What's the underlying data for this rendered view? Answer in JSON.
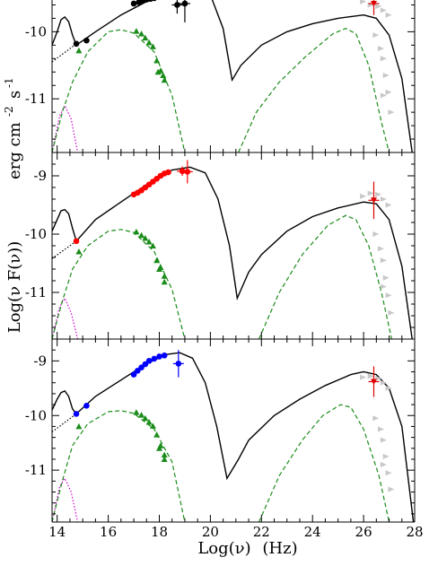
{
  "chart_data": {
    "type": "scatter",
    "xlabel": "Log(ν)",
    "xunit": "(Hz)",
    "ylabel": "Log(ν F(ν))",
    "yunit": {
      "base": "erg cm",
      "exp1": "-2",
      "mid": "s",
      "exp2": "-1"
    },
    "xlim": [
      13.8,
      28
    ],
    "xticks": [
      14,
      16,
      18,
      20,
      22,
      24,
      26,
      28
    ],
    "colors": {
      "model": "#000000",
      "host": "#cc00cc",
      "ext_component": "#1a8c1a",
      "green_points": "#1a8c1a",
      "gray_points": "#c8c8c8",
      "fermi_point": "#e00000"
    },
    "panels": [
      {
        "ylim": [
          -11.8,
          -9.5
        ],
        "yticks": [
          -11,
          -10
        ],
        "point_color": "#000000",
        "points": [
          [
            14.75,
            -10.18
          ],
          [
            15.15,
            -10.13
          ],
          [
            17.0,
            -9.58
          ],
          [
            17.2,
            -9.56
          ],
          [
            17.35,
            -9.53
          ],
          [
            17.5,
            -9.52
          ],
          [
            17.65,
            -9.51
          ],
          [
            17.8,
            -9.5
          ],
          [
            18.7,
            -9.6
          ],
          [
            19.0,
            -9.58
          ]
        ],
        "errors": [
          [
            18.7,
            -9.6,
            0.13
          ],
          [
            19.0,
            -9.58,
            0.28
          ]
        ],
        "model": [
          [
            13.8,
            -10.2
          ],
          [
            14.0,
            -10.0
          ],
          [
            14.15,
            -9.82
          ],
          [
            14.3,
            -9.78
          ],
          [
            14.45,
            -9.85
          ],
          [
            14.6,
            -10.05
          ],
          [
            14.75,
            -10.2
          ],
          [
            15.5,
            -10.0
          ],
          [
            16.5,
            -9.75
          ],
          [
            17.5,
            -9.55
          ],
          [
            18.5,
            -9.45
          ],
          [
            19.5,
            -9.4
          ],
          [
            20.0,
            -9.45
          ],
          [
            20.5,
            -9.95
          ],
          [
            20.85,
            -10.72
          ],
          [
            21.2,
            -10.5
          ],
          [
            22.0,
            -10.2
          ],
          [
            23.0,
            -10.0
          ],
          [
            24.0,
            -9.88
          ],
          [
            25.0,
            -9.8
          ],
          [
            26.0,
            -9.75
          ],
          [
            26.5,
            -9.8
          ],
          [
            27.0,
            -10.05
          ],
          [
            27.5,
            -10.7
          ],
          [
            27.9,
            -11.8
          ]
        ],
        "ext": [
          [
            13.8,
            -11.8
          ],
          [
            14.2,
            -11.2
          ],
          [
            14.6,
            -10.75
          ],
          [
            15.2,
            -10.3
          ],
          [
            16.0,
            -10.0
          ],
          [
            16.5,
            -9.97
          ],
          [
            17.0,
            -10.02
          ],
          [
            17.8,
            -10.3
          ],
          [
            18.5,
            -10.95
          ],
          [
            19.0,
            -11.8
          ]
        ],
        "ext2": [
          [
            21.1,
            -11.8
          ],
          [
            21.8,
            -11.2
          ],
          [
            22.7,
            -10.75
          ],
          [
            23.7,
            -10.38
          ],
          [
            24.8,
            -10.03
          ],
          [
            25.3,
            -9.95
          ],
          [
            25.7,
            -10.03
          ],
          [
            26.2,
            -10.5
          ],
          [
            26.7,
            -11.35
          ],
          [
            27.0,
            -11.8
          ]
        ],
        "host": [
          [
            13.8,
            -11.8
          ],
          [
            14.1,
            -11.25
          ],
          [
            14.3,
            -11.1
          ],
          [
            14.55,
            -11.3
          ],
          [
            14.8,
            -11.8
          ]
        ],
        "host_line": [
          [
            13.8,
            -10.45
          ],
          [
            14.75,
            -10.18
          ]
        ],
        "green": [
          [
            14.85,
            -10.28
          ],
          [
            17.1,
            -9.99
          ],
          [
            17.3,
            -10.03
          ],
          [
            17.45,
            -10.09
          ],
          [
            17.6,
            -10.16
          ],
          [
            17.75,
            -10.22
          ],
          [
            17.9,
            -10.43
          ],
          [
            18.05,
            -10.58
          ],
          [
            18.2,
            -10.72
          ],
          [
            17.95,
            -10.6
          ],
          [
            18.15,
            -10.65
          ]
        ],
        "gray": [
          [
            26.0,
            -9.55
          ],
          [
            26.3,
            -9.6
          ],
          [
            26.6,
            -9.62
          ],
          [
            26.8,
            -9.68
          ],
          [
            27.0,
            -9.75
          ],
          [
            26.5,
            -10.05
          ],
          [
            26.7,
            -10.25
          ],
          [
            26.8,
            -10.4
          ],
          [
            26.9,
            -10.65
          ],
          [
            27.0,
            -10.9
          ],
          [
            27.1,
            -11.2
          ],
          [
            26.8,
            -10.95
          ]
        ],
        "fermi": {
          "x": 26.4,
          "y": -9.58,
          "err": 0.17
        }
      },
      {
        "ylim": [
          -11.8,
          -8.6
        ],
        "yticks": [
          -11,
          -10,
          -9
        ],
        "point_color": "#ff0000",
        "points": [
          [
            14.75,
            -10.12
          ],
          [
            17.0,
            -9.32
          ],
          [
            17.15,
            -9.29
          ],
          [
            17.3,
            -9.25
          ],
          [
            17.45,
            -9.2
          ],
          [
            17.6,
            -9.15
          ],
          [
            17.75,
            -9.1
          ],
          [
            17.9,
            -9.05
          ],
          [
            18.05,
            -9.0
          ],
          [
            18.2,
            -8.96
          ],
          [
            18.35,
            -8.94
          ],
          [
            18.9,
            -8.92
          ],
          [
            19.1,
            -8.93
          ]
        ],
        "errors": [
          [
            18.9,
            -8.92,
            0.08
          ],
          [
            19.1,
            -8.93,
            0.2
          ]
        ],
        "model": [
          [
            13.8,
            -9.95
          ],
          [
            14.0,
            -9.75
          ],
          [
            14.15,
            -9.6
          ],
          [
            14.3,
            -9.58
          ],
          [
            14.45,
            -9.65
          ],
          [
            14.6,
            -9.9
          ],
          [
            14.75,
            -10.12
          ],
          [
            15.5,
            -9.75
          ],
          [
            16.5,
            -9.45
          ],
          [
            17.5,
            -9.15
          ],
          [
            18.5,
            -8.9
          ],
          [
            19.2,
            -8.85
          ],
          [
            19.8,
            -8.95
          ],
          [
            20.3,
            -9.4
          ],
          [
            20.75,
            -10.2
          ],
          [
            21.05,
            -11.1
          ],
          [
            21.5,
            -10.65
          ],
          [
            22.0,
            -10.35
          ],
          [
            23.0,
            -9.95
          ],
          [
            24.0,
            -9.7
          ],
          [
            25.0,
            -9.55
          ],
          [
            26.0,
            -9.45
          ],
          [
            26.5,
            -9.48
          ],
          [
            27.0,
            -9.75
          ],
          [
            27.5,
            -10.55
          ],
          [
            27.9,
            -11.8
          ]
        ],
        "ext": [
          [
            13.8,
            -11.8
          ],
          [
            14.2,
            -11.15
          ],
          [
            14.6,
            -10.6
          ],
          [
            15.2,
            -10.2
          ],
          [
            16.0,
            -9.95
          ],
          [
            16.5,
            -9.92
          ],
          [
            17.0,
            -9.97
          ],
          [
            17.8,
            -10.3
          ],
          [
            18.5,
            -10.95
          ],
          [
            19.0,
            -11.8
          ]
        ],
        "ext2": [
          [
            21.9,
            -11.8
          ],
          [
            22.7,
            -11.0
          ],
          [
            23.6,
            -10.35
          ],
          [
            24.6,
            -9.85
          ],
          [
            25.3,
            -9.68
          ],
          [
            25.7,
            -9.75
          ],
          [
            26.2,
            -10.2
          ],
          [
            26.7,
            -11.0
          ],
          [
            27.1,
            -11.8
          ]
        ],
        "host": [
          [
            13.8,
            -11.8
          ],
          [
            14.1,
            -11.25
          ],
          [
            14.3,
            -11.1
          ],
          [
            14.55,
            -11.35
          ],
          [
            14.8,
            -11.8
          ]
        ],
        "host_line": [
          [
            13.8,
            -10.42
          ],
          [
            14.75,
            -10.12
          ]
        ],
        "green": [
          [
            14.85,
            -10.3
          ],
          [
            17.1,
            -9.96
          ],
          [
            17.3,
            -10.02
          ],
          [
            17.45,
            -10.07
          ],
          [
            17.6,
            -10.13
          ],
          [
            17.75,
            -10.2
          ],
          [
            17.9,
            -10.45
          ],
          [
            18.05,
            -10.57
          ],
          [
            18.2,
            -10.72
          ],
          [
            18.0,
            -10.6
          ],
          [
            18.2,
            -10.82
          ]
        ],
        "gray": [
          [
            26.0,
            -9.35
          ],
          [
            26.3,
            -9.3
          ],
          [
            26.6,
            -9.32
          ],
          [
            26.8,
            -9.4
          ],
          [
            27.0,
            -9.5
          ],
          [
            26.5,
            -10.0
          ],
          [
            26.7,
            -10.25
          ],
          [
            26.8,
            -10.45
          ],
          [
            26.9,
            -10.75
          ],
          [
            27.0,
            -11.05
          ],
          [
            27.1,
            -11.35
          ],
          [
            26.8,
            -10.9
          ]
        ],
        "fermi": {
          "x": 26.4,
          "y": -9.42,
          "err": 0.32
        }
      },
      {
        "ylim": [
          -11.95,
          -8.6
        ],
        "yticks": [
          -11,
          -10,
          -9
        ],
        "point_color": "#0000ff",
        "points": [
          [
            14.75,
            -9.97
          ],
          [
            15.15,
            -9.82
          ],
          [
            17.0,
            -9.25
          ],
          [
            17.15,
            -9.18
          ],
          [
            17.3,
            -9.12
          ],
          [
            17.45,
            -9.06
          ],
          [
            17.6,
            -9.0
          ],
          [
            17.8,
            -8.96
          ],
          [
            18.0,
            -8.92
          ],
          [
            18.2,
            -8.9
          ],
          [
            18.75,
            -9.05
          ]
        ],
        "errors": [
          [
            18.75,
            -9.05,
            0.25
          ]
        ],
        "model": [
          [
            13.8,
            -9.9
          ],
          [
            14.0,
            -9.7
          ],
          [
            14.15,
            -9.58
          ],
          [
            14.3,
            -9.55
          ],
          [
            14.45,
            -9.65
          ],
          [
            14.6,
            -9.88
          ],
          [
            14.75,
            -9.97
          ],
          [
            15.5,
            -9.65
          ],
          [
            16.5,
            -9.35
          ],
          [
            17.5,
            -9.05
          ],
          [
            18.3,
            -8.88
          ],
          [
            18.8,
            -8.85
          ],
          [
            19.3,
            -8.95
          ],
          [
            19.8,
            -9.4
          ],
          [
            20.25,
            -10.2
          ],
          [
            20.65,
            -11.15
          ],
          [
            21.1,
            -10.8
          ],
          [
            21.5,
            -10.45
          ],
          [
            22.5,
            -10.0
          ],
          [
            23.5,
            -9.7
          ],
          [
            24.5,
            -9.45
          ],
          [
            25.5,
            -9.25
          ],
          [
            26.0,
            -9.2
          ],
          [
            26.5,
            -9.25
          ],
          [
            27.0,
            -9.5
          ],
          [
            27.5,
            -10.2
          ],
          [
            27.95,
            -11.95
          ]
        ],
        "ext": [
          [
            13.8,
            -11.95
          ],
          [
            14.2,
            -11.2
          ],
          [
            14.6,
            -10.55
          ],
          [
            15.2,
            -10.15
          ],
          [
            16.0,
            -9.93
          ],
          [
            16.5,
            -9.91
          ],
          [
            17.0,
            -9.96
          ],
          [
            17.8,
            -10.25
          ],
          [
            18.5,
            -10.85
          ],
          [
            19.0,
            -11.95
          ]
        ],
        "ext2": [
          [
            21.9,
            -11.95
          ],
          [
            22.7,
            -11.1
          ],
          [
            23.6,
            -10.45
          ],
          [
            24.4,
            -10.0
          ],
          [
            25.1,
            -9.8
          ],
          [
            25.5,
            -9.85
          ],
          [
            26.0,
            -10.25
          ],
          [
            26.6,
            -11.1
          ],
          [
            27.0,
            -11.95
          ]
        ],
        "host": [
          [
            13.8,
            -11.95
          ],
          [
            14.1,
            -11.3
          ],
          [
            14.3,
            -11.15
          ],
          [
            14.55,
            -11.4
          ],
          [
            14.8,
            -11.95
          ]
        ],
        "host_line": [
          [
            13.8,
            -10.3
          ],
          [
            14.75,
            -9.97
          ]
        ],
        "green": [
          [
            14.85,
            -10.2
          ],
          [
            17.1,
            -9.94
          ],
          [
            17.3,
            -9.99
          ],
          [
            17.45,
            -10.05
          ],
          [
            17.6,
            -10.12
          ],
          [
            17.75,
            -10.19
          ],
          [
            17.9,
            -10.35
          ],
          [
            18.05,
            -10.55
          ],
          [
            18.2,
            -10.72
          ],
          [
            18.0,
            -10.6
          ],
          [
            18.2,
            -10.8
          ]
        ],
        "gray": [
          [
            26.0,
            -9.3
          ],
          [
            26.3,
            -9.28
          ],
          [
            26.6,
            -9.32
          ],
          [
            26.8,
            -9.4
          ],
          [
            27.0,
            -9.5
          ],
          [
            26.5,
            -10.05
          ],
          [
            26.7,
            -10.25
          ],
          [
            26.8,
            -10.45
          ],
          [
            26.9,
            -10.75
          ],
          [
            27.0,
            -11.05
          ],
          [
            27.1,
            -11.35
          ],
          [
            26.8,
            -10.9
          ]
        ],
        "fermi": {
          "x": 26.4,
          "y": -9.38,
          "err": 0.28
        }
      }
    ]
  }
}
